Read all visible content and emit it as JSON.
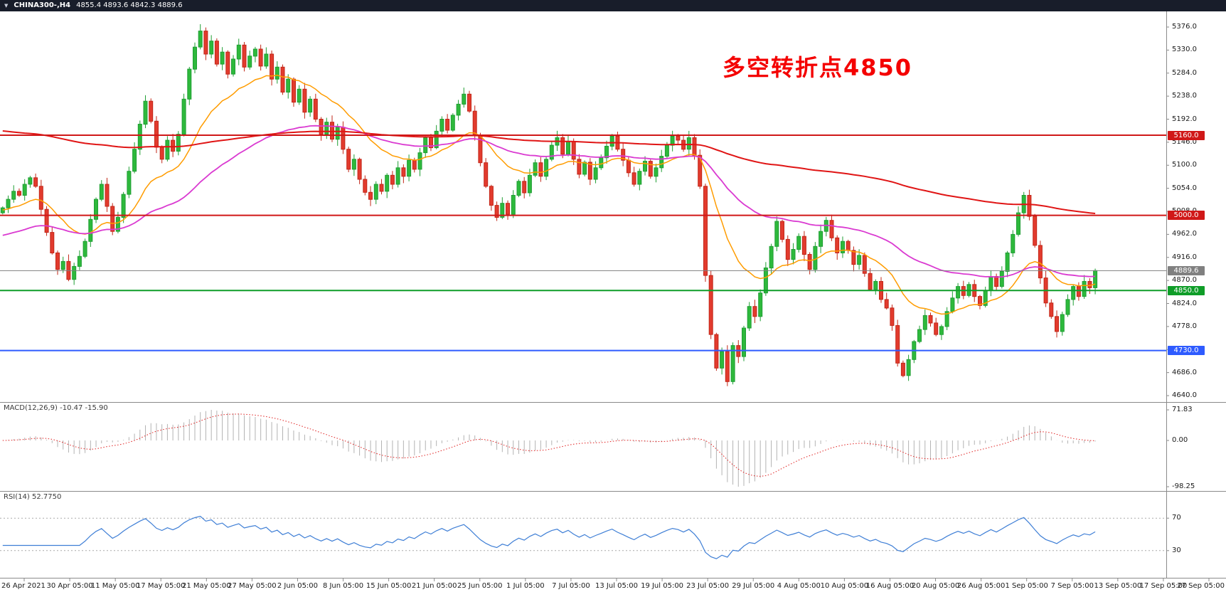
{
  "header": {
    "collapse_icon": "▼",
    "title": "CHINA300-,H4",
    "ohlc_text": "4855.4 4893.6 4842.3 4889.6"
  },
  "annotation": {
    "text": "多空转折点4850",
    "color": "#f40000"
  },
  "colors": {
    "up": "#1f9e33",
    "up_fill": "#2eb93c",
    "down": "#c22718",
    "down_fill": "#e23b2e",
    "macd_hist": "#b3b3b3",
    "macd_signal": "#e02020",
    "rsi_line": "#3f7fd6",
    "level_dotted": "#aaaaaa",
    "separator": "#8a8a8a",
    "axis_text": "#1a1a1a",
    "current_price": "#808080",
    "header_bg": "#181d2a"
  },
  "chart_data": {
    "type": "candlestick+indicators",
    "instrument": "CHINA300-",
    "timeframe": "H4",
    "last_bar_display": {
      "open": 4855.4,
      "high": 4893.6,
      "low": 4842.3,
      "close": 4889.6
    },
    "price_axis": {
      "min": 4640,
      "max": 5376,
      "tick_step": 46,
      "labels": [
        "5376.0",
        "5330.0",
        "5284.0",
        "5238.0",
        "5192.0",
        "5146.0",
        "5100.0",
        "5054.0",
        "5008.0",
        "4962.0",
        "4916.0",
        "4870.0",
        "4824.0",
        "4778.0",
        "4732.0",
        "4686.0",
        "4640.0"
      ]
    },
    "time_labels": [
      "26 Apr 2021",
      "30 Apr 05:00",
      "11 May 05:00",
      "17 May 05:00",
      "21 May 05:00",
      "27 May 05:00",
      "2 Jun 05:00",
      "8 Jun 05:00",
      "15 Jun 05:00",
      "21 Jun 05:00",
      "25 Jun 05:00",
      "1 Jul 05:00",
      "7 Jul 05:00",
      "13 Jul 05:00",
      "19 Jul 05:00",
      "23 Jul 05:00",
      "29 Jul 05:00",
      "4 Aug 05:00",
      "10 Aug 05:00",
      "16 Aug 05:00",
      "20 Aug 05:00",
      "26 Aug 05:00",
      "1 Sep 05:00",
      "7 Sep 05:00",
      "13 Sep 05:00",
      "17 Sep 05:00",
      "27 Sep 05:00"
    ],
    "candles": {
      "closes": [
        5015,
        5032,
        5048,
        5040,
        5062,
        5075,
        5058,
        5012,
        4966,
        4925,
        4892,
        4908,
        4872,
        4898,
        4918,
        4948,
        4992,
        5032,
        5062,
        5018,
        4968,
        4996,
        5042,
        5088,
        5132,
        5182,
        5228,
        5188,
        5136,
        5112,
        5150,
        5128,
        5162,
        5232,
        5292,
        5336,
        5368,
        5322,
        5348,
        5302,
        5326,
        5282,
        5312,
        5340,
        5296,
        5318,
        5332,
        5298,
        5322,
        5272,
        5296,
        5246,
        5272,
        5226,
        5252,
        5206,
        5232,
        5192,
        5162,
        5186,
        5152,
        5176,
        5132,
        5092,
        5112,
        5072,
        5046,
        5032,
        5062,
        5048,
        5080,
        5062,
        5095,
        5078,
        5110,
        5092,
        5125,
        5155,
        5135,
        5168,
        5192,
        5170,
        5200,
        5222,
        5242,
        5208,
        5160,
        5105,
        5058,
        5020,
        4996,
        5024,
        5002,
        5040,
        5068,
        5045,
        5080,
        5105,
        5078,
        5112,
        5140,
        5155,
        5122,
        5148,
        5112,
        5082,
        5106,
        5072,
        5095,
        5115,
        5138,
        5158,
        5132,
        5110,
        5085,
        5062,
        5088,
        5108,
        5078,
        5095,
        5118,
        5140,
        5158,
        5150,
        5132,
        5155,
        5120,
        5058,
        4880,
        4762,
        4695,
        4728,
        4668,
        4740,
        4718,
        4775,
        4818,
        4798,
        4845,
        4895,
        4938,
        4988,
        4952,
        4912,
        4932,
        4958,
        4922,
        4892,
        4938,
        4968,
        4990,
        4955,
        4925,
        4948,
        4930,
        4902,
        4920,
        4884,
        4852,
        4868,
        4832,
        4815,
        4780,
        4705,
        4680,
        4712,
        4748,
        4772,
        4800,
        4785,
        4762,
        4778,
        4808,
        4835,
        4858,
        4840,
        4862,
        4838,
        4820,
        4850,
        4878,
        4858,
        4888,
        4925,
        4962,
        5005,
        5040,
        4998,
        4940,
        4875,
        4825,
        4798,
        4768,
        4802,
        4832,
        4858,
        4838,
        4868,
        4855.4,
        4889.6
      ],
      "last_bar": {
        "open": 4855.4,
        "high": 4893.6,
        "low": 4842.3,
        "close": 4889.6
      }
    },
    "levels": [
      {
        "price": 5160.0,
        "label": "5160.0",
        "color": "#d01818",
        "width": 2
      },
      {
        "price": 5000.0,
        "label": "5000.0",
        "color": "#d01818",
        "width": 2
      },
      {
        "price": 4850.0,
        "label": "4850.0",
        "color": "#0f9d28",
        "width": 2
      },
      {
        "price": 4730.0,
        "label": "4730.0",
        "color": "#2e5bff",
        "width": 2
      }
    ],
    "current_price": {
      "value": 4889.6,
      "label": "4889.6"
    },
    "moving_averages": [
      {
        "name": "ma-fast-orange",
        "period": 18,
        "seed": 5010,
        "color": "#ff9c00",
        "width": 1.5
      },
      {
        "name": "ma-mid-magenta",
        "period": 55,
        "seed": 4958,
        "color": "#da3ad1",
        "width": 1.8
      },
      {
        "name": "ma-slow-red",
        "period": 220,
        "seed": 5170,
        "color": "#e01515",
        "width": 2
      }
    ],
    "macd": {
      "label": "MACD(12,26,9) -10.47 -15.90",
      "params": [
        12,
        26,
        9
      ],
      "value_main": -10.47,
      "value_signal": -15.9,
      "axis_labels": [
        "71.83",
        "0.00",
        "-98.25"
      ],
      "axis_values": [
        71.83,
        0,
        -98.25
      ]
    },
    "rsi": {
      "label": "RSI(14) 52.7750",
      "period": 14,
      "value": 52.775,
      "levels": [
        70,
        30
      ],
      "axis_labels": [
        "70",
        "30"
      ]
    }
  }
}
